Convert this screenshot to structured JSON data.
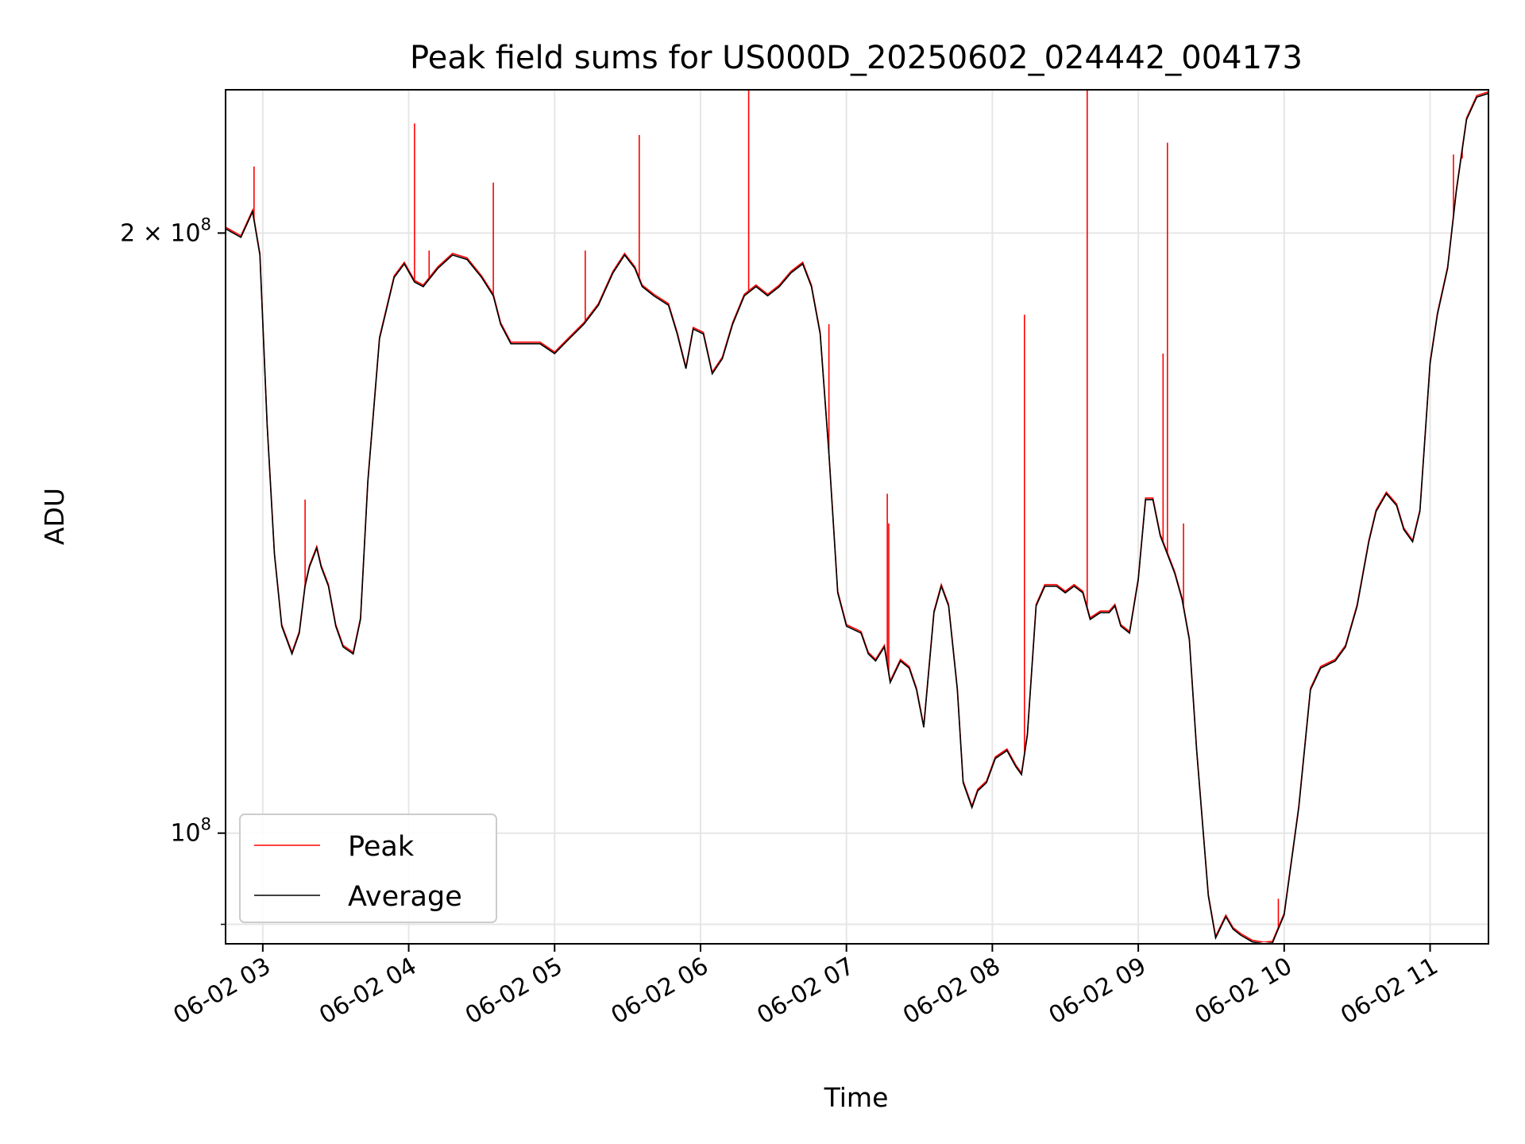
{
  "chart_data": {
    "type": "line",
    "title": "Peak field sums for US000D_20250602_024442_004173",
    "xlabel": "Time",
    "ylabel": "ADU",
    "x_tick_labels": [
      "06-02 03",
      "06-02 04",
      "06-02 05",
      "06-02 06",
      "06-02 07",
      "06-02 08",
      "06-02 09",
      "06-02 10",
      "06-02 11"
    ],
    "x_tick_hours": [
      3,
      4,
      5,
      6,
      7,
      8,
      9,
      10,
      11
    ],
    "y_tick_labels": [
      {
        "value": 200000000,
        "base": "2 × 10",
        "exp": "8"
      },
      {
        "value": 100000000,
        "base": "10",
        "exp": "8"
      }
    ],
    "y_minor_ticks": [
      90000000
    ],
    "xlim_hours": [
      2.745,
      11.4
    ],
    "ylim": [
      88000000,
      236000000
    ],
    "yscale": "log",
    "grid": true,
    "legend": {
      "placement": "lower-left",
      "entries": [
        "Peak",
        "Average"
      ]
    },
    "colors": {
      "Peak": "#ff0000",
      "Average": "#000000"
    },
    "series": [
      {
        "name": "Average",
        "points": [
          [
            2.745,
            201
          ],
          [
            2.85,
            199
          ],
          [
            2.93,
            205
          ],
          [
            2.98,
            195
          ],
          [
            3.03,
            160
          ],
          [
            3.08,
            138
          ],
          [
            3.13,
            127
          ],
          [
            3.2,
            123
          ],
          [
            3.25,
            126
          ],
          [
            3.29,
            133
          ],
          [
            3.32,
            136
          ],
          [
            3.37,
            139
          ],
          [
            3.4,
            136
          ],
          [
            3.45,
            133
          ],
          [
            3.5,
            127
          ],
          [
            3.55,
            124
          ],
          [
            3.62,
            123
          ],
          [
            3.67,
            128
          ],
          [
            3.72,
            150
          ],
          [
            3.8,
            177
          ],
          [
            3.9,
            190
          ],
          [
            3.97,
            193
          ],
          [
            4.04,
            189
          ],
          [
            4.1,
            188
          ],
          [
            4.2,
            192
          ],
          [
            4.3,
            195
          ],
          [
            4.4,
            194
          ],
          [
            4.5,
            190
          ],
          [
            4.58,
            186
          ],
          [
            4.63,
            180
          ],
          [
            4.7,
            176
          ],
          [
            4.8,
            176
          ],
          [
            4.9,
            176
          ],
          [
            5.0,
            174
          ],
          [
            5.1,
            177
          ],
          [
            5.2,
            180
          ],
          [
            5.3,
            184
          ],
          [
            5.4,
            191
          ],
          [
            5.48,
            195
          ],
          [
            5.55,
            192
          ],
          [
            5.6,
            188
          ],
          [
            5.68,
            186
          ],
          [
            5.78,
            184
          ],
          [
            5.84,
            178
          ],
          [
            5.9,
            171
          ],
          [
            5.95,
            179
          ],
          [
            6.02,
            178
          ],
          [
            6.08,
            170
          ],
          [
            6.15,
            173
          ],
          [
            6.22,
            180
          ],
          [
            6.3,
            186
          ],
          [
            6.38,
            188
          ],
          [
            6.46,
            186
          ],
          [
            6.54,
            188
          ],
          [
            6.62,
            191
          ],
          [
            6.7,
            193
          ],
          [
            6.76,
            188
          ],
          [
            6.82,
            178
          ],
          [
            6.88,
            155
          ],
          [
            6.94,
            132
          ],
          [
            7.0,
            127
          ],
          [
            7.1,
            126
          ],
          [
            7.15,
            123
          ],
          [
            7.2,
            122
          ],
          [
            7.26,
            124
          ],
          [
            7.3,
            119
          ],
          [
            7.37,
            122
          ],
          [
            7.43,
            121
          ],
          [
            7.48,
            118
          ],
          [
            7.53,
            113
          ],
          [
            7.6,
            129
          ],
          [
            7.65,
            133
          ],
          [
            7.7,
            130
          ],
          [
            7.76,
            118
          ],
          [
            7.8,
            106
          ],
          [
            7.86,
            103
          ],
          [
            7.9,
            105
          ],
          [
            7.96,
            106
          ],
          [
            8.02,
            109
          ],
          [
            8.1,
            110
          ],
          [
            8.16,
            108
          ],
          [
            8.2,
            107
          ],
          [
            8.24,
            112
          ],
          [
            8.3,
            130
          ],
          [
            8.36,
            133
          ],
          [
            8.44,
            133
          ],
          [
            8.5,
            132
          ],
          [
            8.56,
            133
          ],
          [
            8.62,
            132
          ],
          [
            8.67,
            128
          ],
          [
            8.74,
            129
          ],
          [
            8.8,
            129
          ],
          [
            8.84,
            130
          ],
          [
            8.88,
            127
          ],
          [
            8.94,
            126
          ],
          [
            9.0,
            134
          ],
          [
            9.05,
            147
          ],
          [
            9.1,
            147
          ],
          [
            9.15,
            141
          ],
          [
            9.2,
            138
          ],
          [
            9.25,
            135
          ],
          [
            9.3,
            131
          ],
          [
            9.35,
            125
          ],
          [
            9.4,
            110
          ],
          [
            9.48,
            93
          ],
          [
            9.53,
            88.6
          ],
          [
            9.6,
            90.8
          ],
          [
            9.65,
            89.5
          ],
          [
            9.7,
            88.9
          ],
          [
            9.78,
            88.2
          ],
          [
            9.86,
            88
          ],
          [
            9.92,
            88.1
          ],
          [
            10.0,
            91
          ],
          [
            10.1,
            103
          ],
          [
            10.18,
            118
          ],
          [
            10.25,
            121
          ],
          [
            10.35,
            122
          ],
          [
            10.42,
            124
          ],
          [
            10.5,
            130
          ],
          [
            10.58,
            140
          ],
          [
            10.63,
            145
          ],
          [
            10.7,
            148
          ],
          [
            10.77,
            146
          ],
          [
            10.82,
            142
          ],
          [
            10.88,
            140
          ],
          [
            10.93,
            145
          ],
          [
            11.0,
            172
          ],
          [
            11.05,
            182
          ],
          [
            11.12,
            192
          ],
          [
            11.18,
            210
          ],
          [
            11.25,
            228
          ],
          [
            11.32,
            234
          ],
          [
            11.4,
            235
          ]
        ]
      },
      {
        "name": "Peak",
        "spikes": [
          [
            2.94,
            216
          ],
          [
            3.29,
            147
          ],
          [
            4.04,
            227
          ],
          [
            4.14,
            196
          ],
          [
            4.58,
            212
          ],
          [
            5.21,
            196
          ],
          [
            5.58,
            224
          ],
          [
            6.33,
            236
          ],
          [
            6.88,
            180
          ],
          [
            7.28,
            148
          ],
          [
            7.29,
            143
          ],
          [
            8.22,
            182
          ],
          [
            8.65,
            236
          ],
          [
            9.17,
            174
          ],
          [
            9.2,
            222
          ],
          [
            9.31,
            143
          ],
          [
            9.96,
            92.7
          ],
          [
            11.16,
            219
          ],
          [
            11.22,
            218
          ]
        ]
      }
    ]
  }
}
